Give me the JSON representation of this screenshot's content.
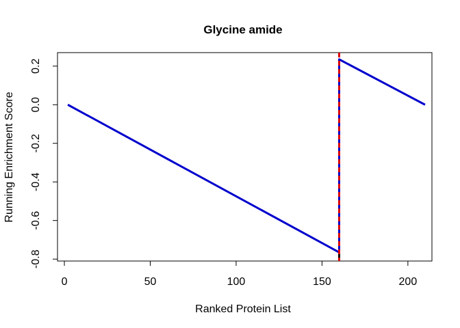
{
  "chart_data": {
    "type": "line",
    "title": "Glycine amide",
    "xlabel": "Ranked Protein List",
    "ylabel": "Running Enrichment Score",
    "xlim": [
      -4,
      214
    ],
    "ylim": [
      -0.81,
      0.27
    ],
    "x_ticks": [
      0,
      50,
      100,
      150,
      200
    ],
    "y_ticks": [
      -0.8,
      -0.6,
      -0.4,
      -0.2,
      0.0,
      0.2
    ],
    "x_tick_labels": [
      "0",
      "50",
      "100",
      "150",
      "200"
    ],
    "y_tick_labels": [
      "-0.8",
      "-0.6",
      "-0.4",
      "-0.2",
      "0.0",
      "0.2"
    ],
    "grid": false,
    "series": [
      {
        "color": "#0000cd",
        "points": [
          [
            2,
            0.0
          ],
          [
            160,
            -0.765
          ],
          [
            160,
            0.235
          ],
          [
            210,
            0.0
          ]
        ]
      }
    ],
    "hit_marks": {
      "color": "#000000",
      "x": [
        160
      ],
      "ymin": -0.81,
      "ymax": -0.7
    },
    "reference_line": {
      "orientation": "vertical",
      "x": 160,
      "color": "#dd0000",
      "style": "dashed"
    }
  }
}
